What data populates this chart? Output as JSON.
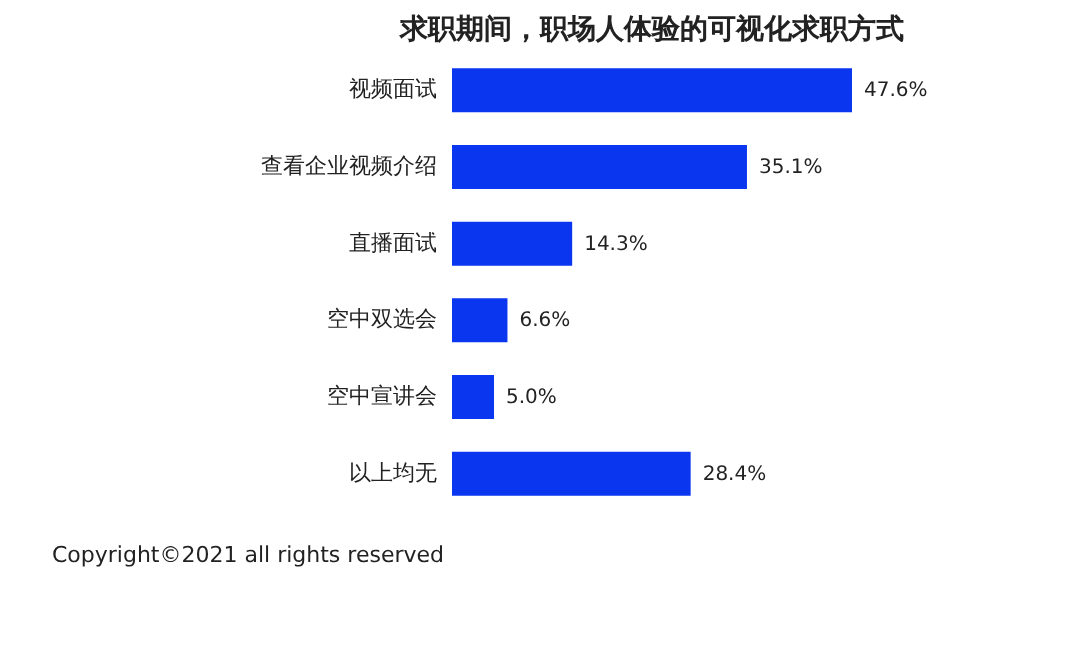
{
  "chart_data": {
    "type": "bar",
    "orientation": "horizontal",
    "title": "求职期间，职场人体验的可视化求职方式",
    "categories": [
      "视频面试",
      "查看企业视频介绍",
      "直播面试",
      "空中双选会",
      "空中宣讲会",
      "以上均无"
    ],
    "values": [
      47.6,
      35.1,
      14.3,
      6.6,
      5.0,
      28.4
    ],
    "color": "#0a36f0",
    "data_labels": true,
    "value_labels": [
      "47.6%",
      "35.1%",
      "14.3%",
      "6.6%",
      "5.0%",
      "28.4%"
    ],
    "annotations": [
      "Copyright©2021 all rights reserved"
    ]
  }
}
